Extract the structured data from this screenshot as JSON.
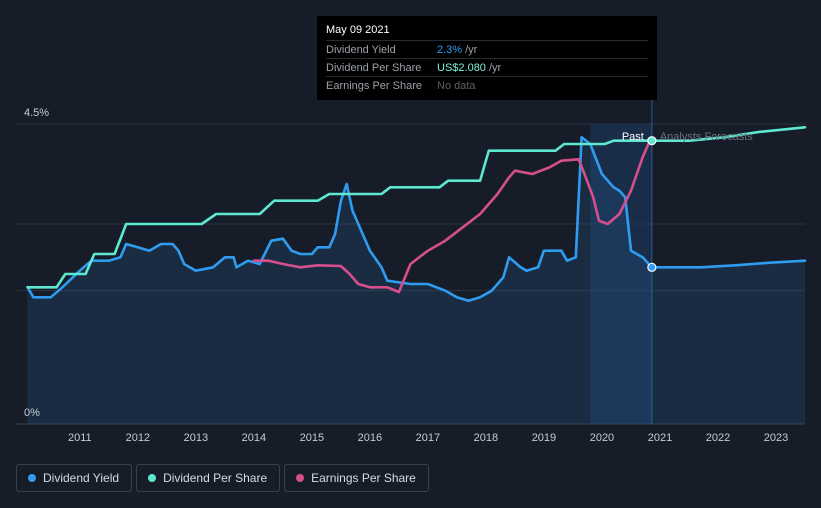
{
  "tooltip": {
    "date": "May 09 2021",
    "rows": [
      {
        "label": "Dividend Yield",
        "value": "2.3%",
        "unit": "/yr"
      },
      {
        "label": "Dividend Per Share",
        "value": "US$2.080",
        "unit": "/yr"
      },
      {
        "label": "Earnings Per Share",
        "value": "No data"
      }
    ]
  },
  "legend": [
    {
      "label": "Dividend Yield",
      "color": "#2f9cf0"
    },
    {
      "label": "Dividend Per Share",
      "color": "#5ee8cf"
    },
    {
      "label": "Earnings Per Share",
      "color": "#d64f8c"
    }
  ],
  "chart_data": {
    "type": "line",
    "y_axis_labels": [
      "4.5%",
      "0%"
    ],
    "ylim": [
      0,
      4.5
    ],
    "xlim": [
      2010.4,
      2024.0
    ],
    "x_ticks": [
      "2011",
      "2012",
      "2013",
      "2014",
      "2015",
      "2016",
      "2017",
      "2018",
      "2019",
      "2020",
      "2021",
      "2022",
      "2023"
    ],
    "past_label": "Past",
    "forecast_label": "Analysts Forecasts",
    "marker_date": 2021.36,
    "forecast_shade_start": 2020.3,
    "grid": true,
    "colors": {
      "yield": "#2f9cf0",
      "dps": "#5ee8cf",
      "eps": "#d64f8c"
    },
    "series": [
      {
        "name": "Dividend Yield",
        "key": "yield",
        "points": [
          [
            2010.6,
            2.05
          ],
          [
            2010.7,
            1.9
          ],
          [
            2010.8,
            1.9
          ],
          [
            2011.0,
            1.9
          ],
          [
            2011.2,
            2.05
          ],
          [
            2011.5,
            2.3
          ],
          [
            2011.7,
            2.45
          ],
          [
            2012.0,
            2.45
          ],
          [
            2012.2,
            2.5
          ],
          [
            2012.3,
            2.7
          ],
          [
            2012.5,
            2.65
          ],
          [
            2012.7,
            2.6
          ],
          [
            2012.9,
            2.7
          ],
          [
            2013.1,
            2.7
          ],
          [
            2013.2,
            2.6
          ],
          [
            2013.3,
            2.4
          ],
          [
            2013.5,
            2.3
          ],
          [
            2013.8,
            2.35
          ],
          [
            2014.0,
            2.5
          ],
          [
            2014.15,
            2.5
          ],
          [
            2014.2,
            2.35
          ],
          [
            2014.4,
            2.45
          ],
          [
            2014.6,
            2.4
          ],
          [
            2014.8,
            2.75
          ],
          [
            2015.0,
            2.78
          ],
          [
            2015.15,
            2.6
          ],
          [
            2015.3,
            2.55
          ],
          [
            2015.5,
            2.55
          ],
          [
            2015.6,
            2.65
          ],
          [
            2015.8,
            2.65
          ],
          [
            2015.9,
            2.85
          ],
          [
            2016.0,
            3.35
          ],
          [
            2016.1,
            3.6
          ],
          [
            2016.2,
            3.2
          ],
          [
            2016.3,
            3.0
          ],
          [
            2016.5,
            2.6
          ],
          [
            2016.7,
            2.35
          ],
          [
            2016.8,
            2.15
          ],
          [
            2017.2,
            2.1
          ],
          [
            2017.5,
            2.1
          ],
          [
            2017.8,
            2.0
          ],
          [
            2018.0,
            1.9
          ],
          [
            2018.2,
            1.85
          ],
          [
            2018.4,
            1.9
          ],
          [
            2018.6,
            2.0
          ],
          [
            2018.8,
            2.2
          ],
          [
            2018.9,
            2.5
          ],
          [
            2019.1,
            2.35
          ],
          [
            2019.2,
            2.3
          ],
          [
            2019.4,
            2.35
          ],
          [
            2019.5,
            2.6
          ],
          [
            2019.8,
            2.6
          ],
          [
            2019.9,
            2.45
          ],
          [
            2020.05,
            2.5
          ],
          [
            2020.15,
            4.3
          ],
          [
            2020.3,
            4.2
          ],
          [
            2020.5,
            3.75
          ],
          [
            2020.7,
            3.55
          ],
          [
            2020.8,
            3.5
          ],
          [
            2020.9,
            3.4
          ],
          [
            2021.0,
            2.6
          ],
          [
            2021.2,
            2.5
          ],
          [
            2021.36,
            2.35
          ],
          [
            2021.8,
            2.35
          ],
          [
            2022.2,
            2.35
          ],
          [
            2022.8,
            2.38
          ],
          [
            2023.4,
            2.42
          ],
          [
            2024.0,
            2.45
          ]
        ]
      },
      {
        "name": "Dividend Per Share",
        "key": "dps",
        "points": [
          [
            2010.6,
            2.05
          ],
          [
            2011.1,
            2.05
          ],
          [
            2011.25,
            2.25
          ],
          [
            2011.6,
            2.25
          ],
          [
            2011.75,
            2.55
          ],
          [
            2012.1,
            2.55
          ],
          [
            2012.3,
            3.0
          ],
          [
            2013.6,
            3.0
          ],
          [
            2013.85,
            3.15
          ],
          [
            2014.6,
            3.15
          ],
          [
            2014.85,
            3.35
          ],
          [
            2015.6,
            3.35
          ],
          [
            2015.8,
            3.45
          ],
          [
            2016.7,
            3.45
          ],
          [
            2016.85,
            3.55
          ],
          [
            2017.7,
            3.55
          ],
          [
            2017.85,
            3.65
          ],
          [
            2018.4,
            3.65
          ],
          [
            2018.55,
            4.1
          ],
          [
            2019.7,
            4.1
          ],
          [
            2019.85,
            4.2
          ],
          [
            2020.55,
            4.2
          ],
          [
            2020.7,
            4.25
          ],
          [
            2021.36,
            4.25
          ],
          [
            2022.0,
            4.25
          ],
          [
            2022.6,
            4.3
          ],
          [
            2023.2,
            4.38
          ],
          [
            2024.0,
            4.45
          ]
        ]
      },
      {
        "name": "Earnings Per Share",
        "key": "eps",
        "points": [
          [
            2014.5,
            2.45
          ],
          [
            2014.75,
            2.45
          ],
          [
            2015.0,
            2.4
          ],
          [
            2015.3,
            2.35
          ],
          [
            2015.6,
            2.38
          ],
          [
            2016.0,
            2.37
          ],
          [
            2016.15,
            2.25
          ],
          [
            2016.3,
            2.1
          ],
          [
            2016.5,
            2.05
          ],
          [
            2016.8,
            2.05
          ],
          [
            2017.0,
            1.98
          ],
          [
            2017.2,
            2.4
          ],
          [
            2017.5,
            2.6
          ],
          [
            2017.8,
            2.75
          ],
          [
            2018.1,
            2.95
          ],
          [
            2018.4,
            3.15
          ],
          [
            2018.7,
            3.45
          ],
          [
            2018.9,
            3.7
          ],
          [
            2019.0,
            3.8
          ],
          [
            2019.3,
            3.75
          ],
          [
            2019.6,
            3.85
          ],
          [
            2019.8,
            3.95
          ],
          [
            2020.1,
            3.97
          ],
          [
            2020.2,
            3.75
          ],
          [
            2020.35,
            3.4
          ],
          [
            2020.45,
            3.05
          ],
          [
            2020.6,
            3.0
          ],
          [
            2020.8,
            3.15
          ],
          [
            2021.0,
            3.5
          ],
          [
            2021.2,
            4.0
          ],
          [
            2021.3,
            4.2
          ]
        ]
      }
    ]
  }
}
